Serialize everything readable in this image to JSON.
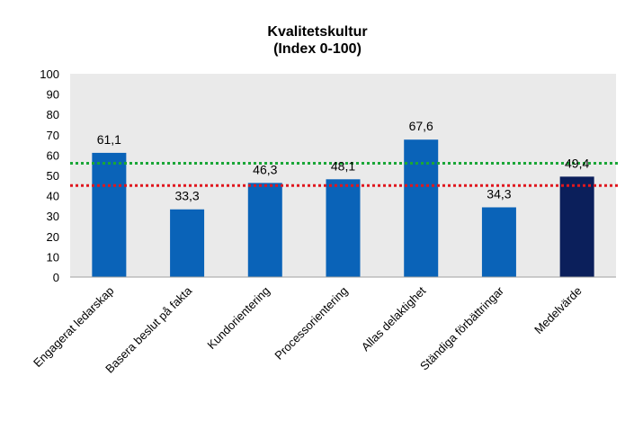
{
  "chart_data": {
    "type": "bar",
    "title_line1": "Kvalitetskultur",
    "title_line2": "(Index 0-100)",
    "categories": [
      "Engagerat ledarskap",
      "Basera beslut på fakta",
      "Kundorientering",
      "Processorientering",
      "Allas delaktighet",
      "Ständiga förbättringar",
      "Medelvärde"
    ],
    "values": [
      61.1,
      33.3,
      46.3,
      48.1,
      67.6,
      34.3,
      49.4
    ],
    "value_labels": [
      "61,1",
      "33,3",
      "46,3",
      "48,1",
      "67,6",
      "34,3",
      "49,4"
    ],
    "yticks": [
      "0",
      "10",
      "20",
      "30",
      "40",
      "50",
      "60",
      "70",
      "80",
      "90",
      "100"
    ],
    "ylim": [
      0,
      100
    ],
    "grid": false,
    "reference_lines": [
      {
        "value": 56,
        "color": "#1aa637",
        "style": "dotted"
      },
      {
        "value": 45,
        "color": "#e0171e",
        "style": "dotted"
      }
    ],
    "colors": {
      "bar": "#0a63b8",
      "highlight_bar": "#0b1f5b",
      "plot_background": "#eaeaea"
    },
    "highlight_index": 6
  }
}
